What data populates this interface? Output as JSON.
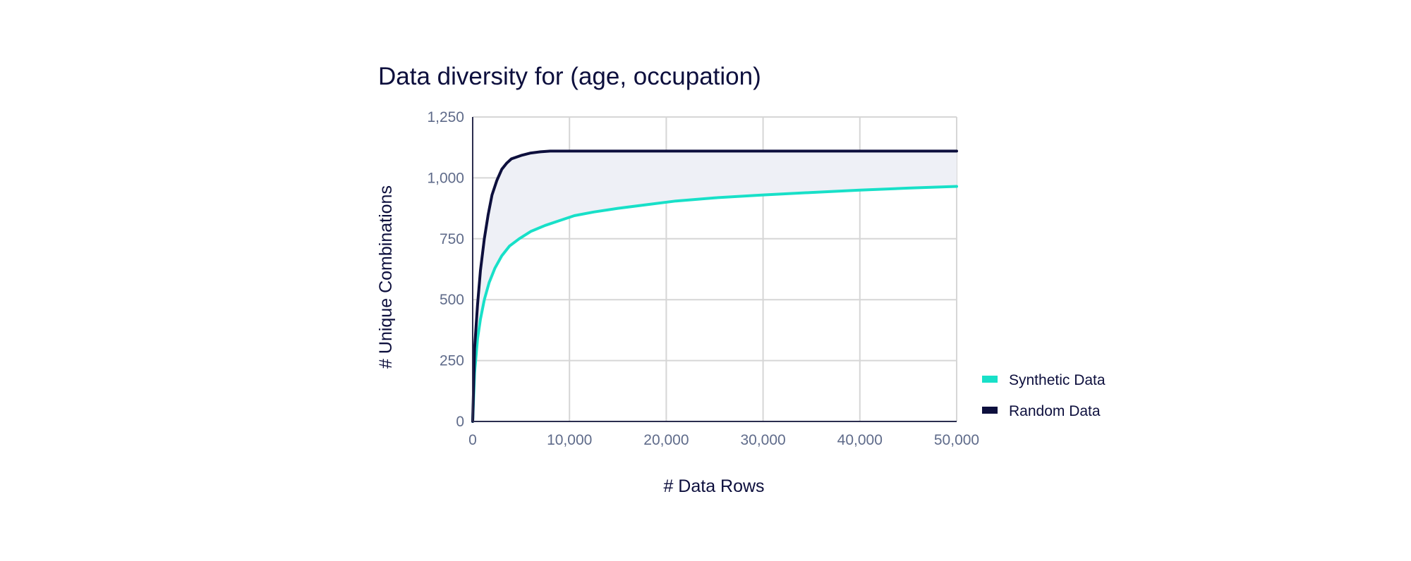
{
  "colors": {
    "synthetic": "#18e0c8",
    "random": "#0d0f3d",
    "fill": "#eef0f6",
    "grid": "#d6d6d6",
    "tick_text": "#5f6b8a",
    "title_text": "#0d0f3d"
  },
  "chart_data": {
    "type": "line",
    "title": "Data diversity for (age, occupation)",
    "xlabel": "# Data Rows",
    "ylabel": "# Unique Combinations",
    "xlim": [
      0,
      50000
    ],
    "ylim": [
      0,
      1250
    ],
    "x_ticks": [
      "0",
      "10,000",
      "20,000",
      "30,000",
      "40,000",
      "50,000"
    ],
    "y_ticks": [
      "0",
      "250",
      "500",
      "750",
      "1,000",
      "1,250"
    ],
    "grid": true,
    "legend_position": "right-bottom",
    "shaded_between_series": true,
    "series": [
      {
        "name": "Synthetic Data",
        "color": "#18e0c8",
        "x": [
          0,
          200,
          500,
          800,
          1200,
          1700,
          2300,
          3000,
          3800,
          4800,
          6000,
          7500,
          9000,
          10500,
          12500,
          15000,
          18000,
          21000,
          25000,
          30000,
          35000,
          40000,
          45000,
          50000
        ],
        "y": [
          0,
          200,
          340,
          420,
          500,
          570,
          630,
          680,
          720,
          750,
          780,
          805,
          825,
          845,
          860,
          875,
          890,
          905,
          918,
          930,
          940,
          950,
          958,
          965
        ]
      },
      {
        "name": "Random Data",
        "color": "#0d0f3d",
        "x": [
          0,
          200,
          500,
          800,
          1200,
          1600,
          2000,
          2500,
          3000,
          3500,
          4000,
          5000,
          6000,
          7000,
          8000,
          50000
        ],
        "y": [
          0,
          300,
          480,
          620,
          750,
          850,
          930,
          990,
          1035,
          1060,
          1078,
          1092,
          1102,
          1107,
          1110,
          1110
        ]
      }
    ]
  }
}
